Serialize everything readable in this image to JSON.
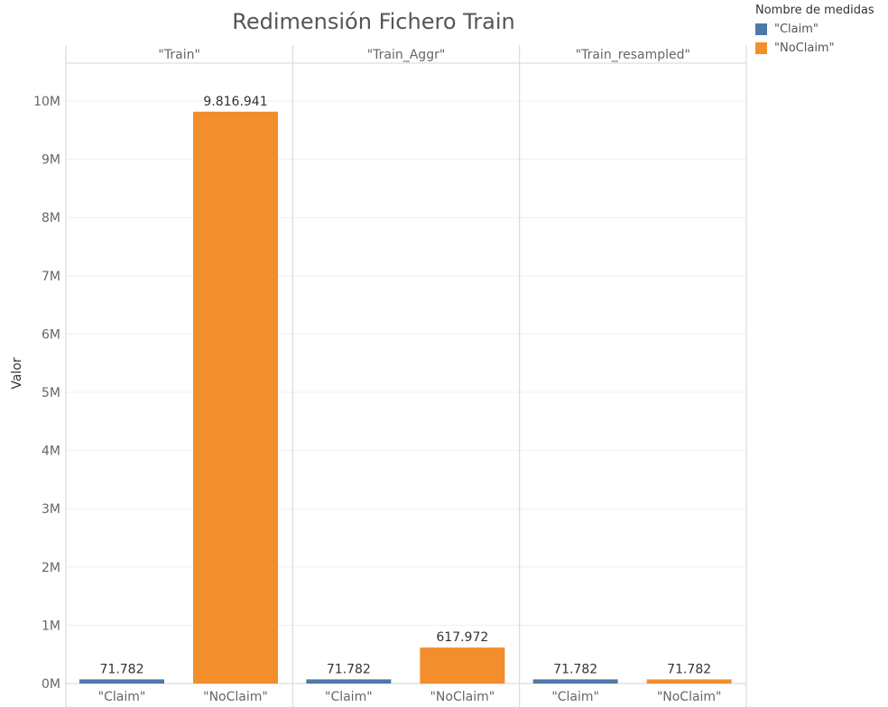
{
  "chart_data": {
    "type": "bar",
    "title": "Redimensión Fichero Train",
    "ylabel": "Valor",
    "ylim": [
      0,
      10500000
    ],
    "yticks": [
      0,
      1000000,
      2000000,
      3000000,
      4000000,
      5000000,
      6000000,
      7000000,
      8000000,
      9000000,
      10000000
    ],
    "ytick_labels": [
      "0M",
      "1M",
      "2M",
      "3M",
      "4M",
      "5M",
      "6M",
      "7M",
      "8M",
      "9M",
      "10M"
    ],
    "grid": true,
    "legend_position": "top-right",
    "legend_title": "Nombre de medidas",
    "categories": [
      "\"Claim\"",
      "\"NoClaim\""
    ],
    "series": [
      {
        "name": "\"Claim\"",
        "color": "#4e79a7"
      },
      {
        "name": "\"NoClaim\"",
        "color": "#f28e2b"
      }
    ],
    "panels": [
      {
        "name": "\"Train\"",
        "values": [
          71782,
          9816941
        ],
        "labels": [
          "71.782",
          "9.816.941"
        ]
      },
      {
        "name": "\"Train_Aggr\"",
        "values": [
          71782,
          617972
        ],
        "labels": [
          "71.782",
          "617.972"
        ]
      },
      {
        "name": "\"Train_resampled\"",
        "values": [
          71782,
          71782
        ],
        "labels": [
          "71.782",
          "71.782"
        ]
      }
    ]
  }
}
